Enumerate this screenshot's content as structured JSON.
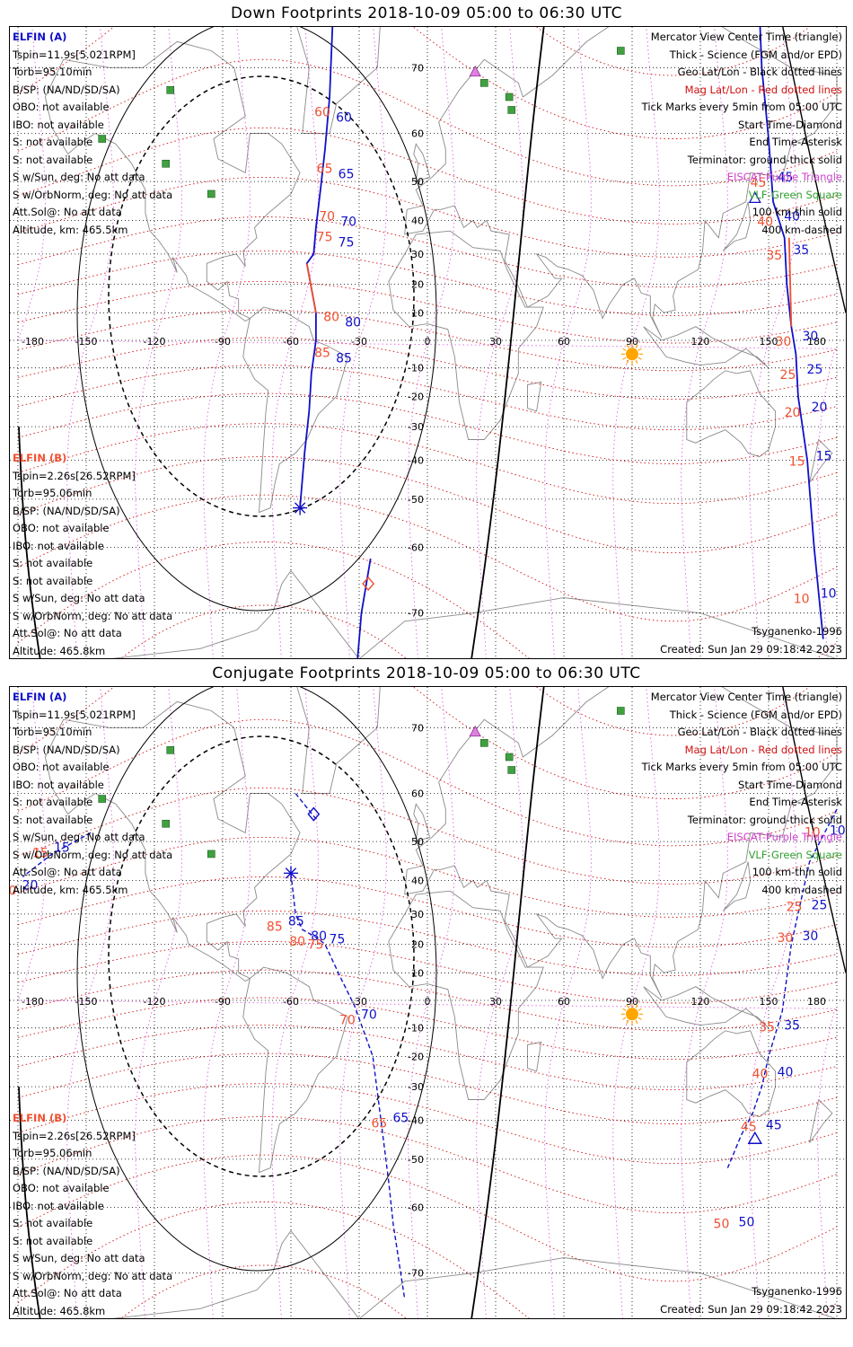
{
  "panels": [
    {
      "title": "Down Footprints 2018-10-09 05:00 to 06:30 UTC",
      "elfin_a": {
        "header": "ELFIN (A)",
        "lines": [
          "Tspin=11.9s[5.021RPM]",
          "Torb=95.10min",
          "B/SP: (NA/ND/SD/SA)",
          "OBO: not available",
          "IBO: not available",
          "S: not available",
          "S: not available",
          "S w/Sun, deg: No att data",
          "S w/OrbNorm, deg: No att data",
          "Att.Sol@: No att data",
          "Altitude, km: 465.5km"
        ]
      },
      "elfin_b": {
        "header": "ELFIN (B)",
        "lines": [
          "Tspin=2.26s[26.52RPM]",
          "Torb=95.06min",
          "B/SP: (NA/ND/SD/SA)",
          "OBO: not available",
          "IBO: not available",
          "S: not available",
          "S: not available",
          "S w/Sun, deg: No att data",
          "S w/OrbNorm, deg: No att data",
          "Att.Sol@: No att data",
          "Altitude: 465.8km"
        ]
      },
      "model": "Tsyganenko-1996",
      "created": "Created: Sun Jan 29 09:18:42 2023",
      "a_track_labels": [
        [
          "60",
          "60"
        ],
        [
          "65",
          "65"
        ],
        [
          "70",
          "70"
        ],
        [
          "75",
          "75"
        ],
        [
          "80",
          "80"
        ],
        [
          "85",
          "85"
        ]
      ],
      "a_track_labels_east": [
        [
          "50",
          "50"
        ],
        [
          "45",
          "45"
        ],
        [
          "40",
          "40"
        ],
        [
          "35",
          "35"
        ],
        [
          "30",
          "30"
        ],
        [
          "25",
          "25"
        ],
        [
          "20",
          "20"
        ],
        [
          "15",
          "15"
        ],
        [
          "10",
          "10"
        ]
      ]
    },
    {
      "title": "Conjugate Footprints 2018-10-09 05:00 to 06:30 UTC",
      "elfin_a": {
        "header": "ELFIN (A)",
        "lines": [
          "Tspin=11.9s[5.021RPM]",
          "Torb=95.10min",
          "B/SP: (NA/ND/SD/SA)",
          "OBO: not available",
          "IBO: not available",
          "S: not available",
          "S: not available",
          "S w/Sun, deg: No att data",
          "S w/OrbNorm, deg: No att data",
          "Att.Sol@: No att data",
          "Altitude, km: 465.5km"
        ]
      },
      "elfin_b": {
        "header": "ELFIN (B)",
        "lines": [
          "Tspin=2.26s[26.52RPM]",
          "Torb=95.06min",
          "B/SP: (NA/ND/SD/SA)",
          "OBO: not available",
          "IBO: not available",
          "S: not available",
          "S: not available",
          "S w/Sun, deg: No att data",
          "S w/OrbNorm, deg: No att data",
          "Att.Sol@: No att data",
          "Altitude: 465.8km"
        ]
      },
      "model": "Tsyganenko-1996",
      "created": "Created: Sun Jan 29 09:18:42 2023",
      "a_track_labels": [
        [
          "15",
          "15"
        ],
        [
          "20",
          "20"
        ],
        [
          "85",
          "85"
        ],
        [
          "80",
          "80"
        ],
        [
          "75",
          "75"
        ],
        [
          "70",
          "70"
        ],
        [
          "65",
          "65"
        ]
      ],
      "a_track_labels_east": [
        [
          "10",
          "10"
        ],
        [
          "25",
          "25"
        ],
        [
          "30",
          "30"
        ],
        [
          "35",
          "35"
        ],
        [
          "40",
          "40"
        ],
        [
          "45",
          "45"
        ],
        [
          "50",
          "50"
        ]
      ]
    }
  ],
  "legend": {
    "lines": [
      {
        "text": "Mercator View Center Time (triangle)",
        "color": "#000000"
      },
      {
        "text": "Thick - Science (FGM and/or EPD)",
        "color": "#000000"
      },
      {
        "text": "Geo Lat/Lon - Black dotted lines",
        "color": "#000000"
      },
      {
        "text": "Mag Lat/Lon - Red dotted lines",
        "color": "#d01010"
      },
      {
        "text": "Tick Marks every 5min from 05:00 UTC",
        "color": "#000000"
      },
      {
        "text": "Start Time-Diamond",
        "color": "#000000"
      },
      {
        "text": "End Time-Asterisk",
        "color": "#000000"
      },
      {
        "text": "Terminator: ground-thick solid",
        "color": "#000000"
      },
      {
        "text": "EISCAT-Purple Triangle",
        "color": "#cc44cc"
      },
      {
        "text": "VLF-Green Square",
        "color": "#30a030"
      },
      {
        "text": "100 km-thin solid",
        "color": "#000000"
      },
      {
        "text": "400 km-dashed",
        "color": "#000000"
      }
    ]
  },
  "axes": {
    "lon_ticks": [
      "-180",
      "-150",
      "-120",
      "-90",
      "-60",
      "-30",
      "0",
      "30",
      "60",
      "90",
      "120",
      "150",
      "180"
    ],
    "lat_ticks": [
      "70",
      "60",
      "50",
      "40",
      "30",
      "20",
      "10",
      "0",
      "-10",
      "-20",
      "-30",
      "-40",
      "-50",
      "-60",
      "-70"
    ]
  },
  "colors": {
    "elfin_a": "#1010c8",
    "elfin_b": "#f05030",
    "mag_grid": "#d01010",
    "geo_grid": "#000000",
    "eiscat": "#cc44cc",
    "vlf": "#30a030",
    "sun": "#ffa500"
  }
}
